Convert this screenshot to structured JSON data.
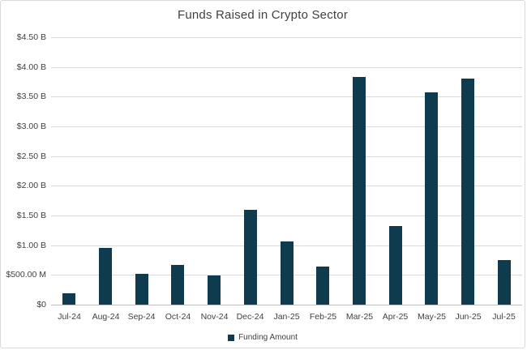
{
  "chart_data": {
    "type": "bar",
    "title": "Funds Raised in Crypto Sector",
    "unit": "USD",
    "categories": [
      "Jul-24",
      "Aug-24",
      "Sep-24",
      "Oct-24",
      "Nov-24",
      "Dec-24",
      "Jan-25",
      "Feb-25",
      "Mar-25",
      "Apr-25",
      "May-25",
      "Jun-25",
      "Jul-25"
    ],
    "series": [
      {
        "name": "Funding Amount",
        "values_billions": [
          0.19,
          0.95,
          0.52,
          0.67,
          0.49,
          1.59,
          1.07,
          0.645,
          3.83,
          1.32,
          3.57,
          3.81,
          0.75
        ]
      }
    ],
    "xlabel": "",
    "ylabel": "",
    "ylim": [
      0,
      4.5
    ],
    "grid": "horizontal",
    "y_ticks": [
      {
        "value": 4.5,
        "label": "$4.50 B"
      },
      {
        "value": 4.0,
        "label": "$4.00 B"
      },
      {
        "value": 3.5,
        "label": "$3.50 B"
      },
      {
        "value": 3.0,
        "label": "$3.00 B"
      },
      {
        "value": 2.5,
        "label": "$2.50 B"
      },
      {
        "value": 2.0,
        "label": "$2.00 B"
      },
      {
        "value": 1.5,
        "label": "$1.50 B"
      },
      {
        "value": 1.0,
        "label": "$1.00 B"
      },
      {
        "value": 0.5,
        "label": "$500.00 M"
      },
      {
        "value": 0.0,
        "label": "$0"
      }
    ],
    "legend": {
      "position": "bottom",
      "label": "Funding Amount"
    },
    "colors": {
      "bar": "#0e3c4e",
      "gridline": "#d9d9d9",
      "axis_line": "#bfbfbf",
      "text": "#404040",
      "background": "#ffffff",
      "frame_border": "#d9d9d9"
    }
  }
}
